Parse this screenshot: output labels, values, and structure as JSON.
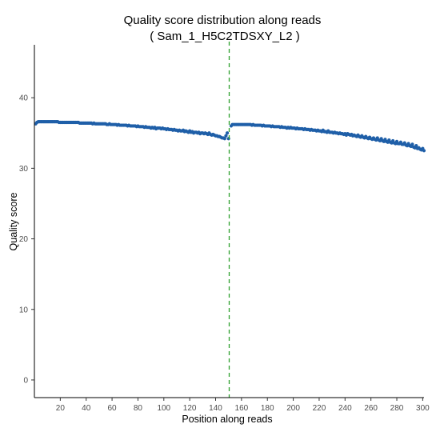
{
  "chart_data": {
    "type": "scatter",
    "title": "Quality score distribution along reads",
    "subtitle": "( Sam_1_H5C2TDSXY_L2 )",
    "xlabel": "Position along reads",
    "ylabel": "Quality score",
    "xlim": [
      0,
      301
    ],
    "ylim": [
      -2.5,
      47.5
    ],
    "xticks": [
      20,
      40,
      60,
      80,
      100,
      120,
      140,
      160,
      180,
      200,
      220,
      240,
      260,
      280,
      300
    ],
    "yticks": [
      0,
      10,
      20,
      30,
      40
    ],
    "grid": false,
    "marker_color": "#1f5fa8",
    "divider_color": "#2ca02c",
    "divider_x": 150.5,
    "read1": {
      "x_start": 1,
      "x_end": 150,
      "values": [
        36.3,
        36.5,
        36.6,
        36.6,
        36.6,
        36.6,
        36.6,
        36.6,
        36.6,
        36.6,
        36.6,
        36.6,
        36.6,
        36.6,
        36.6,
        36.6,
        36.6,
        36.6,
        36.5,
        36.5,
        36.5,
        36.5,
        36.5,
        36.5,
        36.5,
        36.5,
        36.5,
        36.5,
        36.5,
        36.5,
        36.5,
        36.5,
        36.5,
        36.5,
        36.4,
        36.4,
        36.4,
        36.4,
        36.4,
        36.4,
        36.4,
        36.4,
        36.4,
        36.4,
        36.3,
        36.4,
        36.3,
        36.3,
        36.3,
        36.3,
        36.3,
        36.3,
        36.3,
        36.3,
        36.3,
        36.2,
        36.2,
        36.3,
        36.2,
        36.2,
        36.2,
        36.2,
        36.2,
        36.1,
        36.2,
        36.1,
        36.1,
        36.1,
        36.1,
        36.1,
        36.1,
        36.0,
        36.1,
        36.0,
        36.0,
        36.0,
        36.0,
        36.0,
        35.9,
        36.0,
        35.9,
        35.9,
        35.9,
        35.9,
        35.8,
        35.9,
        35.8,
        35.8,
        35.8,
        35.7,
        35.8,
        35.7,
        35.8,
        35.6,
        35.7,
        35.7,
        35.7,
        35.6,
        35.7,
        35.6,
        35.6,
        35.5,
        35.6,
        35.5,
        35.5,
        35.5,
        35.4,
        35.5,
        35.4,
        35.4,
        35.3,
        35.4,
        35.3,
        35.3,
        35.4,
        35.2,
        35.3,
        35.2,
        35.1,
        35.3,
        35.1,
        35.2,
        35.0,
        35.1,
        35.1,
        35.0,
        35.1,
        34.9,
        35.0,
        35.0,
        34.9,
        35.0,
        34.9,
        34.8,
        35.0,
        34.8,
        34.7,
        34.8,
        34.7,
        34.6,
        34.6,
        34.5,
        34.5,
        34.4,
        34.3,
        34.3,
        34.2,
        34.6,
        35.0,
        34.2
      ]
    },
    "read2": {
      "x_start": 152,
      "x_end": 301,
      "values": [
        36.0,
        36.2,
        36.2,
        36.2,
        36.2,
        36.2,
        36.2,
        36.2,
        36.2,
        36.2,
        36.2,
        36.2,
        36.2,
        36.2,
        36.2,
        36.2,
        36.1,
        36.2,
        36.1,
        36.1,
        36.1,
        36.1,
        36.1,
        36.1,
        36.0,
        36.1,
        36.0,
        36.0,
        36.0,
        36.0,
        36.0,
        35.9,
        36.0,
        35.9,
        35.9,
        35.9,
        35.9,
        35.9,
        35.8,
        35.9,
        35.8,
        35.8,
        35.8,
        35.7,
        35.8,
        35.7,
        35.8,
        35.7,
        35.7,
        35.7,
        35.6,
        35.7,
        35.6,
        35.6,
        35.6,
        35.6,
        35.5,
        35.6,
        35.5,
        35.5,
        35.5,
        35.4,
        35.5,
        35.4,
        35.4,
        35.4,
        35.3,
        35.4,
        35.3,
        35.3,
        35.2,
        35.4,
        35.2,
        35.2,
        35.1,
        35.3,
        35.1,
        35.1,
        35.1,
        35.0,
        35.1,
        35.0,
        35.0,
        34.9,
        35.0,
        34.9,
        34.9,
        34.8,
        34.9,
        34.7,
        34.9,
        34.8,
        34.7,
        34.8,
        34.6,
        34.7,
        34.6,
        34.5,
        34.7,
        34.5,
        34.4,
        34.6,
        34.4,
        34.3,
        34.5,
        34.3,
        34.2,
        34.4,
        34.2,
        34.1,
        34.3,
        34.1,
        34.0,
        34.3,
        34.0,
        33.9,
        34.2,
        33.9,
        33.8,
        34.1,
        33.8,
        33.7,
        34.0,
        33.7,
        33.6,
        33.9,
        33.6,
        33.5,
        33.8,
        33.5,
        33.5,
        33.7,
        33.4,
        33.4,
        33.6,
        33.3,
        33.2,
        33.5,
        33.2,
        33.1,
        33.4,
        33.0,
        32.9,
        33.2,
        32.8,
        32.9,
        32.7,
        32.6,
        32.8,
        32.5
      ]
    }
  }
}
